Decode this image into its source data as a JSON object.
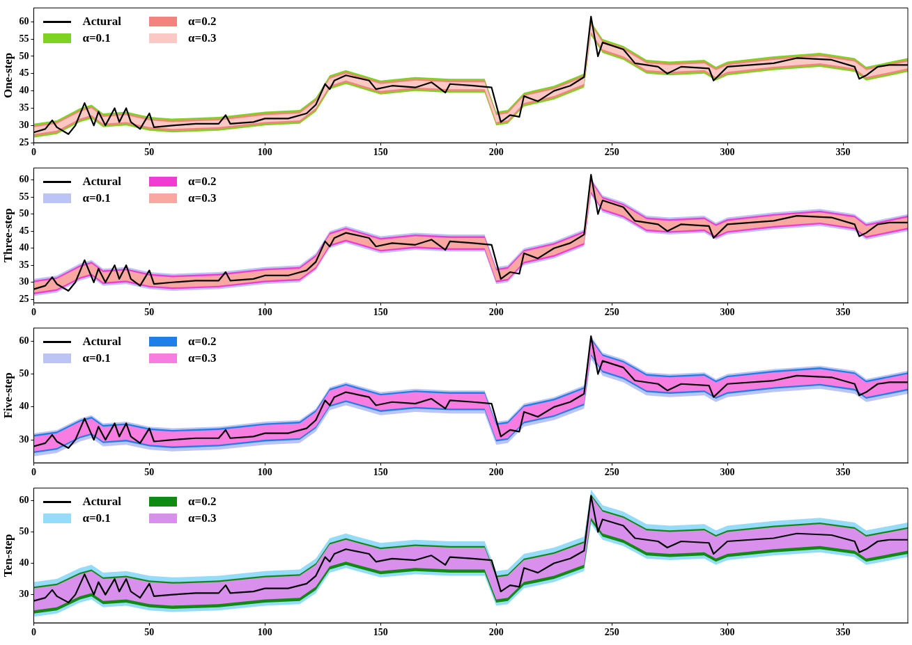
{
  "chart_data": [
    {
      "type": "line",
      "ylabel": "One-step",
      "legend": "top left",
      "xlim": [
        0,
        378
      ],
      "xticks": [
        0,
        50,
        100,
        150,
        200,
        250,
        300,
        350
      ],
      "ylim": [
        25,
        64
      ],
      "yticks": [
        25,
        30,
        35,
        40,
        45,
        50,
        55,
        60
      ],
      "x": [
        0,
        10,
        20,
        25,
        30,
        40,
        50,
        60,
        80,
        100,
        115,
        122,
        128,
        135,
        150,
        165,
        180,
        195,
        200,
        205,
        212,
        225,
        238,
        241,
        246,
        255,
        265,
        275,
        290,
        295,
        300,
        320,
        340,
        355,
        360,
        378
      ],
      "series": [
        {
          "name": "Actural",
          "type": "line",
          "color": "#000000",
          "x": [
            0,
            5,
            8,
            10,
            15,
            18,
            22,
            26,
            28,
            31,
            35,
            37,
            40,
            42,
            46,
            50,
            52,
            60,
            70,
            80,
            83,
            85,
            95,
            100,
            110,
            118,
            122,
            126,
            128,
            130,
            135,
            145,
            148,
            155,
            165,
            172,
            178,
            180,
            190,
            198,
            202,
            206,
            210,
            212,
            218,
            225,
            232,
            238,
            241,
            244,
            246,
            255,
            260,
            270,
            274,
            280,
            292,
            294,
            300,
            320,
            330,
            345,
            355,
            357,
            360,
            365,
            370,
            378
          ],
          "values": [
            28,
            29,
            31.5,
            29.5,
            27.5,
            30,
            36.5,
            30,
            34,
            30,
            35,
            31,
            35,
            31,
            29,
            33.5,
            29.5,
            30,
            30.5,
            30.5,
            33,
            30.5,
            31,
            32,
            32,
            33.5,
            36,
            42,
            40.5,
            43,
            44.5,
            43,
            40.5,
            41.5,
            41,
            42.5,
            39.5,
            42,
            41.5,
            41,
            31,
            33,
            32.5,
            38.5,
            37,
            40,
            41.5,
            44,
            61.5,
            50,
            54,
            52,
            48,
            47,
            45,
            47,
            46.5,
            43,
            47,
            48,
            49.5,
            49,
            47,
            43.5,
            44.5,
            47,
            47.5,
            47.5
          ]
        },
        {
          "name": "α=0.1",
          "type": "area",
          "color": "#7ed321",
          "values": [
            null,
            null,
            null,
            null,
            null,
            null,
            null,
            null,
            null,
            null,
            null,
            null,
            null,
            null,
            null,
            null,
            null,
            null,
            null,
            null,
            null,
            null,
            null,
            null,
            null,
            null,
            null,
            null,
            null,
            null,
            null,
            null,
            null,
            null,
            null,
            null
          ],
          "lower": [
            26.5,
            27.5,
            31,
            32,
            29.5,
            30,
            28.5,
            28,
            28.5,
            30,
            30.5,
            34,
            40.5,
            42,
            39,
            40,
            39.5,
            39.5,
            30,
            30.5,
            35.5,
            37.5,
            41,
            56,
            51,
            49,
            45,
            44.5,
            45,
            43,
            44.5,
            46,
            47,
            45.5,
            43,
            45.5
          ],
          "upper": [
            30.5,
            31.5,
            35,
            36,
            33.5,
            34,
            32.5,
            32,
            32.5,
            34,
            34.5,
            38,
            44.5,
            46,
            43,
            44,
            43.5,
            43.5,
            34,
            34.5,
            39.5,
            41.5,
            45,
            60,
            55,
            53,
            49,
            48.5,
            49,
            47,
            48.5,
            50,
            51,
            49.5,
            47,
            49.5
          ]
        },
        {
          "name": "α=0.2",
          "type": "area",
          "color": "#f4837d",
          "values": [
            null,
            null,
            null,
            null,
            null,
            null,
            null,
            null,
            null,
            null,
            null,
            null,
            null,
            null,
            null,
            null,
            null,
            null,
            null,
            null,
            null,
            null,
            null,
            null,
            null,
            null,
            null,
            null,
            null,
            null,
            null,
            null,
            null,
            null,
            null,
            null
          ],
          "lower": [
            27,
            28,
            31.5,
            32.5,
            30,
            30.5,
            29,
            28.5,
            29,
            30.5,
            31,
            34.5,
            41,
            42.5,
            39.5,
            40.5,
            40,
            40,
            30.5,
            31,
            36,
            38,
            41.5,
            56.5,
            51.5,
            49.5,
            45.5,
            45,
            45.5,
            43.5,
            45,
            46.5,
            47.5,
            46,
            43.5,
            46
          ],
          "upper": [
            30,
            31,
            34.5,
            35.5,
            33,
            33.5,
            32,
            31.5,
            32,
            33.5,
            34,
            37.5,
            44,
            45.5,
            42.5,
            43.5,
            43,
            43,
            33.5,
            34,
            39,
            41,
            44.5,
            59.5,
            54.5,
            52.5,
            48.5,
            48,
            48.5,
            46.5,
            48,
            49.5,
            50.5,
            49,
            46.5,
            49
          ]
        },
        {
          "name": "α=0.3",
          "type": "area",
          "color": "#fcc8c4",
          "values": [
            null,
            null,
            null,
            null,
            null,
            null,
            null,
            null,
            null,
            null,
            null,
            null,
            null,
            null,
            null,
            null,
            null,
            null,
            null,
            null,
            null,
            null,
            null,
            null,
            null,
            null,
            null,
            null,
            null,
            null,
            null,
            null,
            null,
            null,
            null,
            null
          ],
          "lower": [
            27.5,
            28.5,
            32,
            33,
            30.5,
            31,
            29.5,
            29,
            29.5,
            31,
            31.5,
            35,
            41.5,
            43,
            40,
            41,
            40.5,
            40.5,
            31,
            31.5,
            36.5,
            38.5,
            42,
            57,
            52,
            50,
            46,
            45.5,
            46,
            44,
            45.5,
            47,
            48,
            46.5,
            44,
            46.5
          ],
          "upper": [
            29.5,
            30.5,
            34,
            35,
            32.5,
            33,
            31.5,
            31,
            31.5,
            33,
            33.5,
            37,
            43.5,
            45,
            42,
            43,
            42.5,
            42.5,
            33,
            33.5,
            38.5,
            40.5,
            44,
            59,
            54,
            52,
            48,
            47.5,
            48,
            46,
            47.5,
            49,
            50,
            48.5,
            46,
            48.5
          ]
        }
      ]
    },
    {
      "type": "line",
      "ylabel": "Three-step",
      "legend": "top left",
      "xlim": [
        0,
        378
      ],
      "xticks": [
        0,
        50,
        100,
        150,
        200,
        250,
        300,
        350
      ],
      "ylim": [
        24,
        63.5
      ],
      "yticks": [
        25,
        30,
        35,
        40,
        45,
        50,
        55,
        60
      ],
      "x": [
        0,
        10,
        20,
        25,
        30,
        40,
        50,
        60,
        80,
        100,
        115,
        122,
        128,
        135,
        150,
        165,
        180,
        195,
        200,
        205,
        212,
        225,
        238,
        241,
        246,
        255,
        265,
        275,
        290,
        295,
        300,
        320,
        340,
        355,
        360,
        378
      ],
      "series": [
        {
          "name": "Actural",
          "type": "line",
          "color": "#000000",
          "x": [
            0,
            5,
            8,
            10,
            15,
            18,
            22,
            26,
            28,
            31,
            35,
            37,
            40,
            42,
            46,
            50,
            52,
            60,
            70,
            80,
            83,
            85,
            95,
            100,
            110,
            118,
            122,
            126,
            128,
            130,
            135,
            145,
            148,
            155,
            165,
            172,
            178,
            180,
            190,
            198,
            202,
            206,
            210,
            212,
            218,
            225,
            232,
            238,
            241,
            244,
            246,
            255,
            260,
            270,
            274,
            280,
            292,
            294,
            300,
            320,
            330,
            345,
            355,
            357,
            360,
            365,
            370,
            378
          ],
          "values": [
            28,
            29,
            31.5,
            29.5,
            27.5,
            30,
            36.5,
            30,
            34,
            30,
            35,
            31,
            35,
            31,
            29,
            33.5,
            29.5,
            30,
            30.5,
            30.5,
            33,
            30.5,
            31,
            32,
            32,
            33.5,
            36,
            42,
            40.5,
            43,
            44.5,
            43,
            40.5,
            41.5,
            41,
            42.5,
            39.5,
            42,
            41.5,
            41,
            31,
            33,
            32.5,
            38.5,
            37,
            40,
            41.5,
            44,
            61.5,
            50,
            54,
            52,
            48,
            47,
            45,
            47,
            46.5,
            43,
            47,
            48,
            49.5,
            49,
            47,
            43.5,
            44.5,
            47,
            47.5,
            47.5
          ]
        },
        {
          "name": "α=0.1",
          "type": "area",
          "color": "#bcc4f5",
          "values": [
            null,
            null,
            null,
            null,
            null,
            null,
            null,
            null,
            null,
            null,
            null,
            null,
            null,
            null,
            null,
            null,
            null,
            null,
            null,
            null,
            null,
            null,
            null,
            null,
            null,
            null,
            null,
            null,
            null,
            null,
            null,
            null,
            null,
            null,
            null,
            null
          ],
          "lower": [
            26,
            27,
            30.5,
            31.5,
            29,
            29.5,
            28,
            27.5,
            28,
            29.5,
            30,
            33.5,
            40,
            41.5,
            38.5,
            39.5,
            39,
            39,
            29.5,
            30,
            35,
            37,
            40.5,
            55.5,
            50.5,
            48.5,
            44.5,
            44,
            44.5,
            42.5,
            44,
            45.5,
            46.5,
            45,
            42.5,
            45
          ],
          "upper": [
            31,
            32,
            35.5,
            36.5,
            34,
            34.5,
            33,
            32.5,
            33,
            34.5,
            35,
            38.5,
            45,
            46.5,
            43.5,
            44.5,
            44,
            44,
            34.5,
            35,
            40,
            42,
            45.5,
            60.5,
            55.5,
            53.5,
            49.5,
            49,
            49.5,
            47.5,
            49,
            50.5,
            51.5,
            50,
            47.5,
            50
          ]
        },
        {
          "name": "α=0.2",
          "type": "area",
          "color": "#f03cd2",
          "values": [
            null,
            null,
            null,
            null,
            null,
            null,
            null,
            null,
            null,
            null,
            null,
            null,
            null,
            null,
            null,
            null,
            null,
            null,
            null,
            null,
            null,
            null,
            null,
            null,
            null,
            null,
            null,
            null,
            null,
            null,
            null,
            null,
            null,
            null,
            null,
            null
          ],
          "lower": [
            26.5,
            27.5,
            31,
            32,
            29.5,
            30,
            28.5,
            28,
            28.5,
            30,
            30.5,
            34,
            40.5,
            42,
            39,
            40,
            39.5,
            39.5,
            30,
            30.5,
            35.5,
            37.5,
            41,
            56,
            51,
            49,
            45,
            44.5,
            45,
            43,
            44.5,
            46,
            47,
            45.5,
            43,
            45.5
          ],
          "upper": [
            30.5,
            31.5,
            35,
            36,
            33.5,
            34,
            32.5,
            32,
            32.5,
            34,
            34.5,
            38,
            44.5,
            46,
            43,
            44,
            43.5,
            43.5,
            34,
            34.5,
            39.5,
            41.5,
            45,
            60,
            55,
            53,
            49,
            48.5,
            49,
            47,
            48.5,
            50,
            51,
            49.5,
            47,
            49.5
          ]
        },
        {
          "name": "α=0.3",
          "type": "area",
          "color": "#f8a8a0",
          "values": [
            null,
            null,
            null,
            null,
            null,
            null,
            null,
            null,
            null,
            null,
            null,
            null,
            null,
            null,
            null,
            null,
            null,
            null,
            null,
            null,
            null,
            null,
            null,
            null,
            null,
            null,
            null,
            null,
            null,
            null,
            null,
            null,
            null,
            null,
            null,
            null
          ],
          "lower": [
            27,
            28,
            31.5,
            32.5,
            30,
            30.5,
            29,
            28.5,
            29,
            30.5,
            31,
            34.5,
            41,
            42.5,
            39.5,
            40.5,
            40,
            40,
            30.5,
            31,
            36,
            38,
            41.5,
            56.5,
            51.5,
            49.5,
            45.5,
            45,
            45.5,
            43.5,
            45,
            46.5,
            47.5,
            46,
            43.5,
            46
          ],
          "upper": [
            30,
            31,
            34.5,
            35.5,
            33,
            33.5,
            32,
            31.5,
            32,
            33.5,
            34,
            37.5,
            44,
            45.5,
            42.5,
            43.5,
            43,
            43,
            33.5,
            34,
            39,
            41,
            44.5,
            59.5,
            54.5,
            52.5,
            48.5,
            48,
            48.5,
            46.5,
            48,
            49.5,
            50.5,
            49,
            46.5,
            49
          ]
        }
      ]
    },
    {
      "type": "line",
      "ylabel": "Five-step",
      "legend": "top left",
      "xlim": [
        0,
        378
      ],
      "xticks": [
        0,
        50,
        100,
        150,
        200,
        250,
        300,
        350
      ],
      "ylim": [
        23,
        64
      ],
      "yticks": [
        30,
        40,
        50,
        60
      ],
      "x": [
        0,
        10,
        20,
        25,
        30,
        40,
        50,
        60,
        80,
        100,
        115,
        122,
        128,
        135,
        150,
        165,
        180,
        195,
        200,
        205,
        212,
        225,
        238,
        241,
        246,
        255,
        265,
        275,
        290,
        295,
        300,
        320,
        340,
        355,
        360,
        378
      ],
      "series": [
        {
          "name": "Actural",
          "type": "line",
          "color": "#000000",
          "x": [
            0,
            5,
            8,
            10,
            15,
            18,
            22,
            26,
            28,
            31,
            35,
            37,
            40,
            42,
            46,
            50,
            52,
            60,
            70,
            80,
            83,
            85,
            95,
            100,
            110,
            118,
            122,
            126,
            128,
            130,
            135,
            145,
            148,
            155,
            165,
            172,
            178,
            180,
            190,
            198,
            202,
            206,
            210,
            212,
            218,
            225,
            232,
            238,
            241,
            244,
            246,
            255,
            260,
            270,
            274,
            280,
            292,
            294,
            300,
            320,
            330,
            345,
            355,
            357,
            360,
            365,
            370,
            378
          ],
          "values": [
            28,
            29,
            31.5,
            29.5,
            27.5,
            30,
            36.5,
            30,
            34,
            30,
            35,
            31,
            35,
            31,
            29,
            33.5,
            29.5,
            30,
            30.5,
            30.5,
            33,
            30.5,
            31,
            32,
            32,
            33.5,
            36,
            42,
            40.5,
            43,
            44.5,
            43,
            40.5,
            41.5,
            41,
            42.5,
            39.5,
            42,
            41.5,
            41,
            31,
            33,
            32.5,
            38.5,
            37,
            40,
            41.5,
            44,
            61.5,
            50,
            54,
            52,
            48,
            47,
            45,
            47,
            46.5,
            43,
            47,
            48,
            49.5,
            49,
            47,
            43.5,
            44.5,
            47,
            47.5,
            47.5
          ]
        },
        {
          "name": "α=0.1",
          "type": "area",
          "color": "#bcc4f5",
          "values": [
            null,
            null,
            null,
            null,
            null,
            null,
            null,
            null,
            null,
            null,
            null,
            null,
            null,
            null,
            null,
            null,
            null,
            null,
            null,
            null,
            null,
            null,
            null,
            null,
            null,
            null,
            null,
            null,
            null,
            null,
            null,
            null,
            null,
            null,
            null,
            null
          ],
          "lower": [
            25,
            26,
            29.5,
            30.5,
            28,
            28.5,
            27,
            26.5,
            27,
            28.5,
            29,
            32.5,
            39,
            40.5,
            37.5,
            38.5,
            38,
            38,
            28.5,
            29,
            34,
            36,
            39.5,
            54.5,
            49.5,
            47.5,
            43.5,
            43,
            43.5,
            41.5,
            43,
            44.5,
            45.5,
            44,
            41.5,
            44
          ],
          "upper": [
            32,
            33,
            36.5,
            37.5,
            35,
            35.5,
            34,
            33.5,
            34,
            35.5,
            36,
            39.5,
            46,
            47.5,
            44.5,
            45.5,
            45,
            45,
            35.5,
            36,
            41,
            43,
            46.5,
            61.5,
            56.5,
            54.5,
            50.5,
            50,
            50.5,
            48.5,
            50,
            51.5,
            52.5,
            51,
            48.5,
            51
          ]
        },
        {
          "name": "α=0.2",
          "type": "area",
          "color": "#1f7fe8",
          "values": [
            null,
            null,
            null,
            null,
            null,
            null,
            null,
            null,
            null,
            null,
            null,
            null,
            null,
            null,
            null,
            null,
            null,
            null,
            null,
            null,
            null,
            null,
            null,
            null,
            null,
            null,
            null,
            null,
            null,
            null,
            null,
            null,
            null,
            null,
            null,
            null
          ],
          "lower": [
            26,
            27,
            30.5,
            31.5,
            29,
            29.5,
            28,
            27.5,
            28,
            29.5,
            30,
            33.5,
            40,
            41.5,
            38.5,
            39.5,
            39,
            39,
            29.5,
            30,
            35,
            37,
            40.5,
            55.5,
            50.5,
            48.5,
            44.5,
            44,
            44.5,
            42.5,
            44,
            45.5,
            46.5,
            45,
            42.5,
            45
          ],
          "upper": [
            31.5,
            32.5,
            36,
            37,
            34.5,
            35,
            33.5,
            33,
            33.5,
            35,
            35.5,
            39,
            45.5,
            47,
            44,
            45,
            44.5,
            44.5,
            35,
            35.5,
            40.5,
            42.5,
            46,
            61,
            56,
            54,
            50,
            49.5,
            50,
            48,
            49.5,
            51,
            52,
            50.5,
            48,
            50.5
          ]
        },
        {
          "name": "α=0.3",
          "type": "area",
          "color": "#f77ee0",
          "values": [
            null,
            null,
            null,
            null,
            null,
            null,
            null,
            null,
            null,
            null,
            null,
            null,
            null,
            null,
            null,
            null,
            null,
            null,
            null,
            null,
            null,
            null,
            null,
            null,
            null,
            null,
            null,
            null,
            null,
            null,
            null,
            null,
            null,
            null,
            null,
            null
          ],
          "lower": [
            26.5,
            27.5,
            31,
            32,
            29.5,
            30,
            28.5,
            28,
            28.5,
            30,
            30.5,
            34,
            40.5,
            42,
            39,
            40,
            39.5,
            39.5,
            30,
            30.5,
            35.5,
            37.5,
            41,
            56,
            51,
            49,
            45,
            44.5,
            45,
            43,
            44.5,
            46,
            47,
            45.5,
            43,
            45.5
          ],
          "upper": [
            31,
            32,
            35.5,
            36.5,
            34,
            34.5,
            33,
            32.5,
            33,
            34.5,
            35,
            38.5,
            45,
            46.5,
            43.5,
            44.5,
            44,
            44,
            34.5,
            35,
            40,
            42,
            45.5,
            60.5,
            55.5,
            53.5,
            49.5,
            49,
            49.5,
            47.5,
            49,
            50.5,
            51.5,
            50,
            47.5,
            50
          ]
        }
      ]
    },
    {
      "type": "line",
      "ylabel": "Ten-step",
      "legend": "top left",
      "xlim": [
        0,
        378
      ],
      "xticks": [
        0,
        50,
        100,
        150,
        200,
        250,
        300,
        350
      ],
      "ylim": [
        21,
        64
      ],
      "yticks": [
        30,
        40,
        50,
        60
      ],
      "x": [
        0,
        10,
        20,
        25,
        30,
        40,
        50,
        60,
        80,
        100,
        115,
        122,
        128,
        135,
        150,
        165,
        180,
        195,
        200,
        205,
        212,
        225,
        238,
        241,
        246,
        255,
        265,
        275,
        290,
        295,
        300,
        320,
        340,
        355,
        360,
        378
      ],
      "series": [
        {
          "name": "Actural",
          "type": "line",
          "color": "#000000",
          "x": [
            0,
            5,
            8,
            10,
            15,
            18,
            22,
            26,
            28,
            31,
            35,
            37,
            40,
            42,
            46,
            50,
            52,
            60,
            70,
            80,
            83,
            85,
            95,
            100,
            110,
            118,
            122,
            126,
            128,
            130,
            135,
            145,
            148,
            155,
            165,
            172,
            178,
            180,
            190,
            198,
            202,
            206,
            210,
            212,
            218,
            225,
            232,
            238,
            241,
            244,
            246,
            255,
            260,
            270,
            274,
            280,
            292,
            294,
            300,
            320,
            330,
            345,
            355,
            357,
            360,
            365,
            370,
            378
          ],
          "values": [
            28,
            29,
            31.5,
            29.5,
            27.5,
            30,
            36.5,
            30,
            34,
            30,
            35,
            31,
            35,
            31,
            29,
            33.5,
            29.5,
            30,
            30.5,
            30.5,
            33,
            30.5,
            31,
            32,
            32,
            33.5,
            36,
            42,
            40.5,
            43,
            44.5,
            43,
            40.5,
            41.5,
            41,
            42.5,
            39.5,
            42,
            41.5,
            41,
            31,
            33,
            32.5,
            38.5,
            37,
            40,
            41.5,
            44,
            61.5,
            50,
            54,
            52,
            48,
            47,
            45,
            47,
            46.5,
            43,
            47,
            48,
            49.5,
            49,
            47,
            43.5,
            44.5,
            47,
            47.5,
            47.5
          ]
        },
        {
          "name": "α=0.1",
          "type": "area",
          "color": "#94dcfa",
          "values": [
            null,
            null,
            null,
            null,
            null,
            null,
            null,
            null,
            null,
            null,
            null,
            null,
            null,
            null,
            null,
            null,
            null,
            null,
            null,
            null,
            null,
            null,
            null,
            null,
            null,
            null,
            null,
            null,
            null,
            null,
            null,
            null,
            null,
            null,
            null,
            null
          ],
          "lower": [
            23,
            24,
            27.5,
            28.5,
            26,
            26.5,
            25,
            24.5,
            25,
            26.5,
            27,
            30.5,
            37,
            38.5,
            35.5,
            36.5,
            36,
            36,
            26.5,
            27,
            32,
            34,
            37.5,
            52.5,
            47.5,
            45.5,
            41.5,
            41,
            41.5,
            39.5,
            41,
            42.5,
            43.5,
            42,
            39.5,
            42
          ],
          "upper": [
            34,
            35,
            38.5,
            39.5,
            37,
            37.5,
            36,
            35.5,
            36,
            37.5,
            38,
            41.5,
            48,
            49.5,
            46.5,
            47.5,
            47,
            47,
            37.5,
            38,
            43,
            45,
            48.5,
            63.5,
            58.5,
            56.5,
            52.5,
            52,
            52.5,
            50.5,
            52,
            53.5,
            54.5,
            53,
            50.5,
            53
          ]
        },
        {
          "name": "α=0.2",
          "type": "area",
          "color": "#118a11",
          "values": [
            null,
            null,
            null,
            null,
            null,
            null,
            null,
            null,
            null,
            null,
            null,
            null,
            null,
            null,
            null,
            null,
            null,
            null,
            null,
            null,
            null,
            null,
            null,
            null,
            null,
            null,
            null,
            null,
            null,
            null,
            null,
            null,
            null,
            null,
            null,
            null
          ],
          "lower": [
            24,
            25,
            28.5,
            29.5,
            27,
            27.5,
            26,
            25.5,
            26,
            27.5,
            28,
            31.5,
            38,
            39.5,
            36.5,
            37.5,
            37,
            37,
            27.5,
            28,
            33,
            35,
            38.5,
            53.5,
            48.5,
            46.5,
            42.5,
            42,
            42.5,
            40.5,
            42,
            43.5,
            44.5,
            43,
            40.5,
            43
          ],
          "upper": [
            32.5,
            33.5,
            37,
            38,
            35.5,
            36,
            34.5,
            34,
            34.5,
            36,
            36.5,
            40,
            46.5,
            48,
            45,
            46,
            45.5,
            45.5,
            36,
            36.5,
            41.5,
            43.5,
            47,
            62,
            57,
            55,
            51,
            50.5,
            51,
            49,
            50.5,
            52,
            53,
            51.5,
            49,
            51.5
          ]
        },
        {
          "name": "α=0.3",
          "type": "area",
          "color": "#d890ec",
          "values": [
            null,
            null,
            null,
            null,
            null,
            null,
            null,
            null,
            null,
            null,
            null,
            null,
            null,
            null,
            null,
            null,
            null,
            null,
            null,
            null,
            null,
            null,
            null,
            null,
            null,
            null,
            null,
            null,
            null,
            null,
            null,
            null,
            null,
            null,
            null,
            null
          ],
          "lower": [
            25,
            26,
            29.5,
            30.5,
            28,
            28.5,
            27,
            26.5,
            27,
            28.5,
            29,
            32.5,
            39,
            40.5,
            37.5,
            38.5,
            38,
            38,
            28.5,
            29,
            34,
            36,
            39.5,
            54.5,
            49.5,
            47.5,
            43.5,
            43,
            43.5,
            41.5,
            43,
            44.5,
            45.5,
            44,
            41.5,
            44
          ],
          "upper": [
            32,
            33,
            36.5,
            37.5,
            35,
            35.5,
            34,
            33.5,
            34,
            35.5,
            36,
            39.5,
            46,
            47.5,
            44.5,
            45.5,
            45,
            45,
            35.5,
            36,
            41,
            43,
            46.5,
            61.5,
            56.5,
            54.5,
            50.5,
            50,
            50.5,
            48.5,
            50,
            51.5,
            52.5,
            51,
            48.5,
            51
          ]
        }
      ]
    }
  ]
}
